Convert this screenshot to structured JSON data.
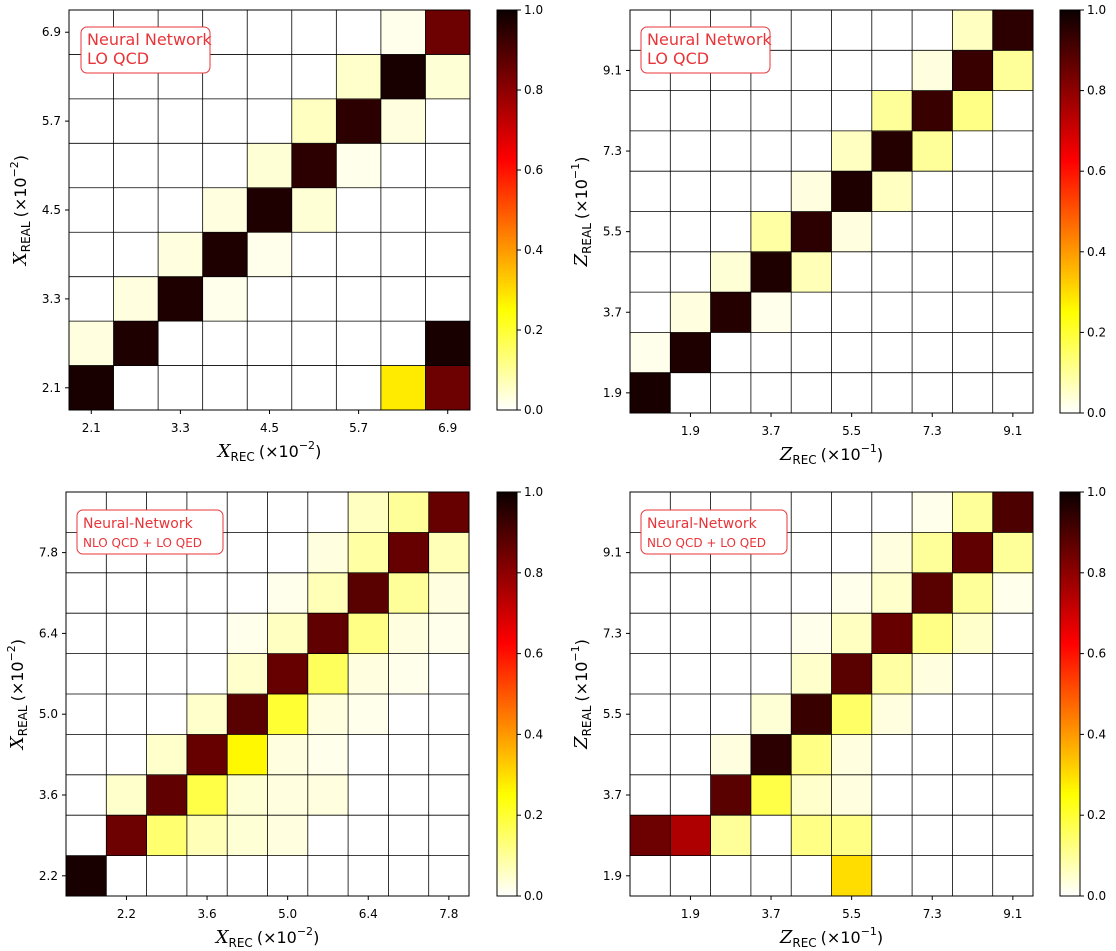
{
  "colorbar": {
    "ticks": [
      "0.0",
      "0.2",
      "0.4",
      "0.6",
      "0.8",
      "1.0"
    ],
    "colormap": "hot_r",
    "min": 0.0,
    "max": 1.0
  },
  "colors": {
    "grid": "#000000",
    "annotation": "#e8353a"
  },
  "chart_data": [
    {
      "type": "heatmap",
      "panel": "top-left",
      "n": 9,
      "annotation": [
        "Neural Network",
        "LO QCD"
      ],
      "xlabel_var": "X",
      "xlabel_sub": "REC",
      "xlabel_scale": "(×10",
      "xlabel_exp": "−2",
      "xlabel_close": ")",
      "ylabel_var": "X",
      "ylabel_sub": "REAL",
      "ylabel_scale": "(×10",
      "ylabel_exp": "−2",
      "ylabel_close": ")",
      "xticks": [
        {
          "label": "2.1",
          "bin": 1
        },
        {
          "label": "3.3",
          "bin": 3
        },
        {
          "label": "4.5",
          "bin": 5
        },
        {
          "label": "5.7",
          "bin": 7
        },
        {
          "label": "6.9",
          "bin": 9
        }
      ],
      "yticks": [
        {
          "label": "2.1",
          "bin": 1
        },
        {
          "label": "3.3",
          "bin": 3
        },
        {
          "label": "4.5",
          "bin": 5
        },
        {
          "label": "5.7",
          "bin": 7
        },
        {
          "label": "6.9",
          "bin": 9
        }
      ],
      "values": [
        [
          0.98,
          0,
          0,
          0,
          0,
          0,
          0,
          0.28,
          0.85
        ],
        [
          0.03,
          0.97,
          0,
          0,
          0,
          0,
          0,
          0,
          0.98
        ],
        [
          0,
          0.03,
          0.97,
          0.02,
          0,
          0,
          0,
          0,
          0
        ],
        [
          0,
          0,
          0.03,
          0.97,
          0.02,
          0,
          0,
          0,
          0
        ],
        [
          0,
          0,
          0,
          0.03,
          0.97,
          0.04,
          0,
          0,
          0
        ],
        [
          0,
          0,
          0,
          0,
          0.04,
          0.95,
          0.02,
          0,
          0
        ],
        [
          0,
          0,
          0,
          0,
          0,
          0.06,
          0.95,
          0.03,
          0
        ],
        [
          0,
          0,
          0,
          0,
          0,
          0,
          0.05,
          0.98,
          0.04
        ],
        [
          0,
          0,
          0,
          0,
          0,
          0,
          0,
          0.02,
          0.85
        ]
      ]
    },
    {
      "type": "heatmap",
      "panel": "top-right",
      "n": 10,
      "annotation": [
        "Neural Network",
        "LO QCD"
      ],
      "xlabel_var": "Z",
      "xlabel_sub": "REC",
      "xlabel_scale": "(×10",
      "xlabel_exp": "−1",
      "xlabel_close": ")",
      "ylabel_var": "Z",
      "ylabel_sub": "REAL",
      "ylabel_scale": "(×10",
      "ylabel_exp": "−1",
      "ylabel_close": ")",
      "xticks": [
        {
          "label": "1.9",
          "bin": 2
        },
        {
          "label": "3.7",
          "bin": 4
        },
        {
          "label": "5.5",
          "bin": 6
        },
        {
          "label": "7.3",
          "bin": 8
        },
        {
          "label": "9.1",
          "bin": 10
        }
      ],
      "yticks": [
        {
          "label": "1.9",
          "bin": 1
        },
        {
          "label": "3.7",
          "bin": 3
        },
        {
          "label": "5.5",
          "bin": 5
        },
        {
          "label": "7.3",
          "bin": 7
        },
        {
          "label": "9.1",
          "bin": 9
        }
      ],
      "values": [
        [
          0.98,
          0,
          0,
          0,
          0,
          0,
          0,
          0,
          0,
          0
        ],
        [
          0.02,
          0.97,
          0,
          0,
          0,
          0,
          0,
          0,
          0,
          0
        ],
        [
          0,
          0.03,
          0.96,
          0.02,
          0,
          0,
          0,
          0,
          0,
          0
        ],
        [
          0,
          0,
          0.04,
          0.97,
          0.07,
          0,
          0,
          0,
          0,
          0
        ],
        [
          0,
          0,
          0,
          0.09,
          0.95,
          0.03,
          0,
          0,
          0,
          0
        ],
        [
          0,
          0,
          0,
          0,
          0.03,
          0.97,
          0.06,
          0,
          0,
          0
        ],
        [
          0,
          0,
          0,
          0,
          0,
          0.06,
          0.96,
          0.1,
          0,
          0
        ],
        [
          0,
          0,
          0,
          0,
          0,
          0,
          0.1,
          0.93,
          0.12,
          0
        ],
        [
          0,
          0,
          0,
          0,
          0,
          0,
          0,
          0.03,
          0.93,
          0.1
        ],
        [
          0,
          0,
          0,
          0,
          0,
          0,
          0,
          0,
          0.06,
          0.95
        ]
      ]
    },
    {
      "type": "heatmap",
      "panel": "bottom-left",
      "n": 10,
      "annotation": [
        "Neural-Network",
        "NLO QCD + LO QED"
      ],
      "xlabel_var": "X",
      "xlabel_sub": "REC",
      "xlabel_scale": "(×10",
      "xlabel_exp": "−2",
      "xlabel_close": ")",
      "ylabel_var": "X",
      "ylabel_sub": "REAL",
      "ylabel_scale": "(×10",
      "ylabel_exp": "−2",
      "ylabel_close": ")",
      "xticks": [
        {
          "label": "2.2",
          "bin": 2
        },
        {
          "label": "3.6",
          "bin": 4
        },
        {
          "label": "5.0",
          "bin": 6
        },
        {
          "label": "6.4",
          "bin": 8
        },
        {
          "label": "7.8",
          "bin": 10
        }
      ],
      "yticks": [
        {
          "label": "2.2",
          "bin": 1
        },
        {
          "label": "3.6",
          "bin": 3
        },
        {
          "label": "5.0",
          "bin": 5
        },
        {
          "label": "6.4",
          "bin": 7
        },
        {
          "label": "7.8",
          "bin": 9
        }
      ],
      "values": [
        [
          0.98,
          0,
          0,
          0,
          0,
          0,
          0,
          0,
          0,
          0
        ],
        [
          0,
          0.85,
          0.14,
          0.07,
          0.04,
          0.03,
          0,
          0,
          0,
          0
        ],
        [
          0,
          0.05,
          0.87,
          0.18,
          0.04,
          0.03,
          0.03,
          0,
          0,
          0
        ],
        [
          0,
          0,
          0.05,
          0.86,
          0.26,
          0.03,
          0.02,
          0,
          0,
          0
        ],
        [
          0,
          0,
          0,
          0.05,
          0.88,
          0.2,
          0.03,
          0.02,
          0,
          0
        ],
        [
          0,
          0,
          0,
          0,
          0.05,
          0.86,
          0.16,
          0.03,
          0.02,
          0
        ],
        [
          0,
          0,
          0,
          0,
          0.02,
          0.06,
          0.87,
          0.12,
          0.03,
          0.02
        ],
        [
          0,
          0,
          0,
          0,
          0,
          0.02,
          0.07,
          0.88,
          0.1,
          0.03
        ],
        [
          0,
          0,
          0,
          0,
          0,
          0,
          0.03,
          0.09,
          0.86,
          0.07
        ],
        [
          0,
          0,
          0,
          0,
          0,
          0,
          0,
          0.06,
          0.1,
          0.86
        ]
      ]
    },
    {
      "type": "heatmap",
      "panel": "bottom-right",
      "n": 10,
      "annotation": [
        "Neural-Network",
        "NLO QCD + LO QED"
      ],
      "xlabel_var": "Z",
      "xlabel_sub": "REC",
      "xlabel_scale": "(×10",
      "xlabel_exp": "−1",
      "xlabel_close": ")",
      "ylabel_var": "Z",
      "ylabel_sub": "REAL",
      "ylabel_scale": "(×10",
      "ylabel_exp": "−1",
      "ylabel_close": ")",
      "xticks": [
        {
          "label": "1.9",
          "bin": 2
        },
        {
          "label": "3.7",
          "bin": 4
        },
        {
          "label": "5.5",
          "bin": 6
        },
        {
          "label": "7.3",
          "bin": 8
        },
        {
          "label": "9.1",
          "bin": 10
        }
      ],
      "yticks": [
        {
          "label": "1.9",
          "bin": 1
        },
        {
          "label": "3.7",
          "bin": 3
        },
        {
          "label": "5.5",
          "bin": 5
        },
        {
          "label": "7.3",
          "bin": 7
        },
        {
          "label": "9.1",
          "bin": 9
        }
      ],
      "values": [
        [
          0,
          0,
          0,
          0,
          0,
          0.3,
          0,
          0,
          0,
          0
        ],
        [
          0.85,
          0.75,
          0.1,
          0,
          0.12,
          0.12,
          0,
          0,
          0,
          0
        ],
        [
          0,
          0,
          0.88,
          0.18,
          0.05,
          0.03,
          0,
          0,
          0,
          0
        ],
        [
          0,
          0,
          0.03,
          0.95,
          0.12,
          0.03,
          0,
          0,
          0,
          0
        ],
        [
          0,
          0,
          0,
          0.04,
          0.93,
          0.15,
          0.03,
          0,
          0,
          0
        ],
        [
          0,
          0,
          0,
          0,
          0.05,
          0.88,
          0.09,
          0.03,
          0,
          0
        ],
        [
          0,
          0,
          0,
          0,
          0.02,
          0.06,
          0.86,
          0.12,
          0.05,
          0
        ],
        [
          0,
          0,
          0,
          0,
          0,
          0.02,
          0.05,
          0.88,
          0.1,
          0.02
        ],
        [
          0,
          0,
          0,
          0,
          0,
          0,
          0.03,
          0.1,
          0.87,
          0.1
        ],
        [
          0,
          0,
          0,
          0,
          0,
          0,
          0,
          0.02,
          0.1,
          0.9
        ]
      ]
    }
  ]
}
